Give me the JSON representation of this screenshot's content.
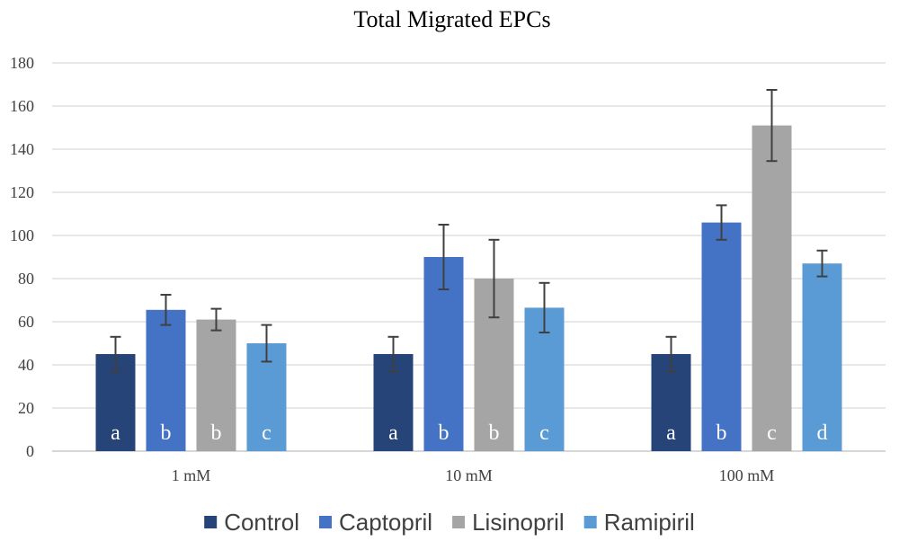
{
  "chart_data": {
    "type": "bar",
    "title": "Total Migrated EPCs",
    "xlabel": "",
    "ylabel": "",
    "ylim": [
      0,
      180
    ],
    "yticks": [
      0,
      20,
      40,
      60,
      80,
      100,
      120,
      140,
      160,
      180
    ],
    "grid": true,
    "legend_position": "bottom",
    "categories": [
      "1 mM",
      "10 mM",
      "100 mM"
    ],
    "series": [
      {
        "name": "Control",
        "color": "#264478",
        "values": [
          45,
          45,
          45
        ],
        "error": [
          8,
          8,
          8
        ],
        "labels": [
          "a",
          "a",
          "a"
        ]
      },
      {
        "name": "Captopril",
        "color": "#4472c4",
        "values": [
          65.5,
          90,
          106
        ],
        "error": [
          7,
          15,
          8
        ],
        "labels": [
          "b",
          "b",
          "b"
        ]
      },
      {
        "name": "Lisinopril",
        "color": "#a5a5a5",
        "values": [
          61,
          80,
          151
        ],
        "error": [
          5,
          18,
          16.5
        ],
        "labels": [
          "b",
          "b",
          "c"
        ]
      },
      {
        "name": "Ramipiril",
        "color": "#5b9bd5",
        "values": [
          50,
          66.5,
          87
        ],
        "error": [
          8.5,
          11.5,
          6
        ],
        "labels": [
          "c",
          "c",
          "d"
        ]
      }
    ]
  }
}
